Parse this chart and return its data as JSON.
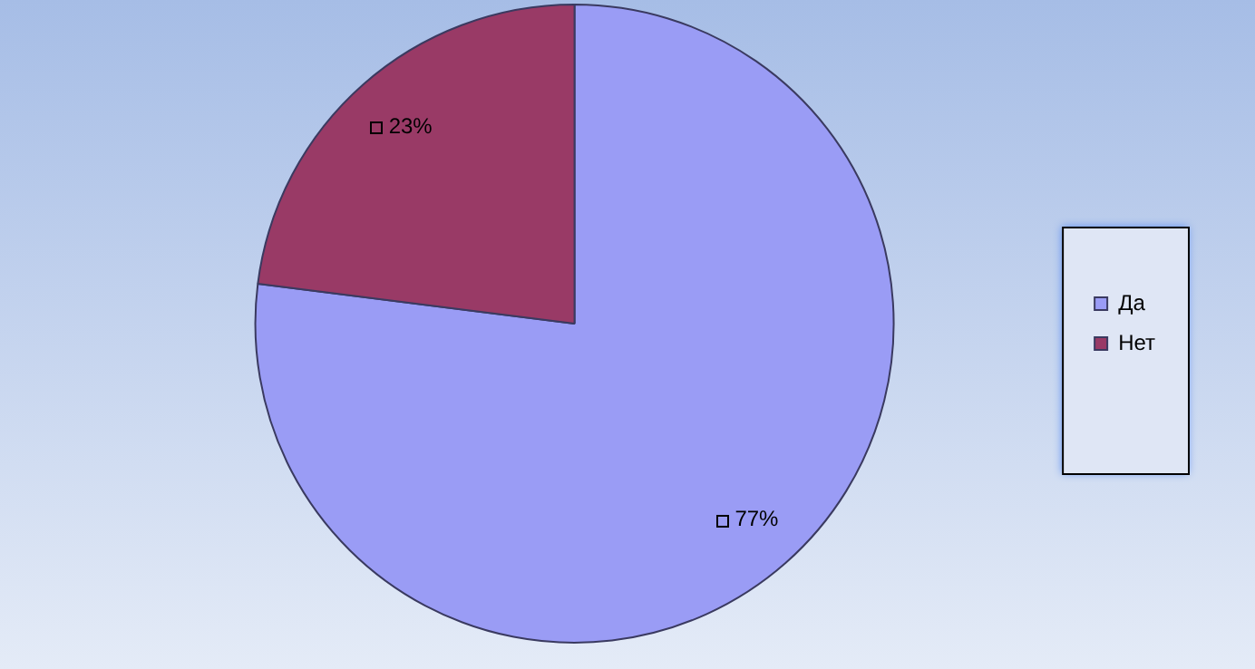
{
  "chart_data": {
    "type": "pie",
    "categories": [
      "Да",
      "Нет"
    ],
    "values": [
      77,
      23
    ],
    "colors": [
      "#9a9cf5",
      "#993a66"
    ],
    "value_labels": [
      "77%",
      "23%"
    ],
    "legend": "right"
  }
}
